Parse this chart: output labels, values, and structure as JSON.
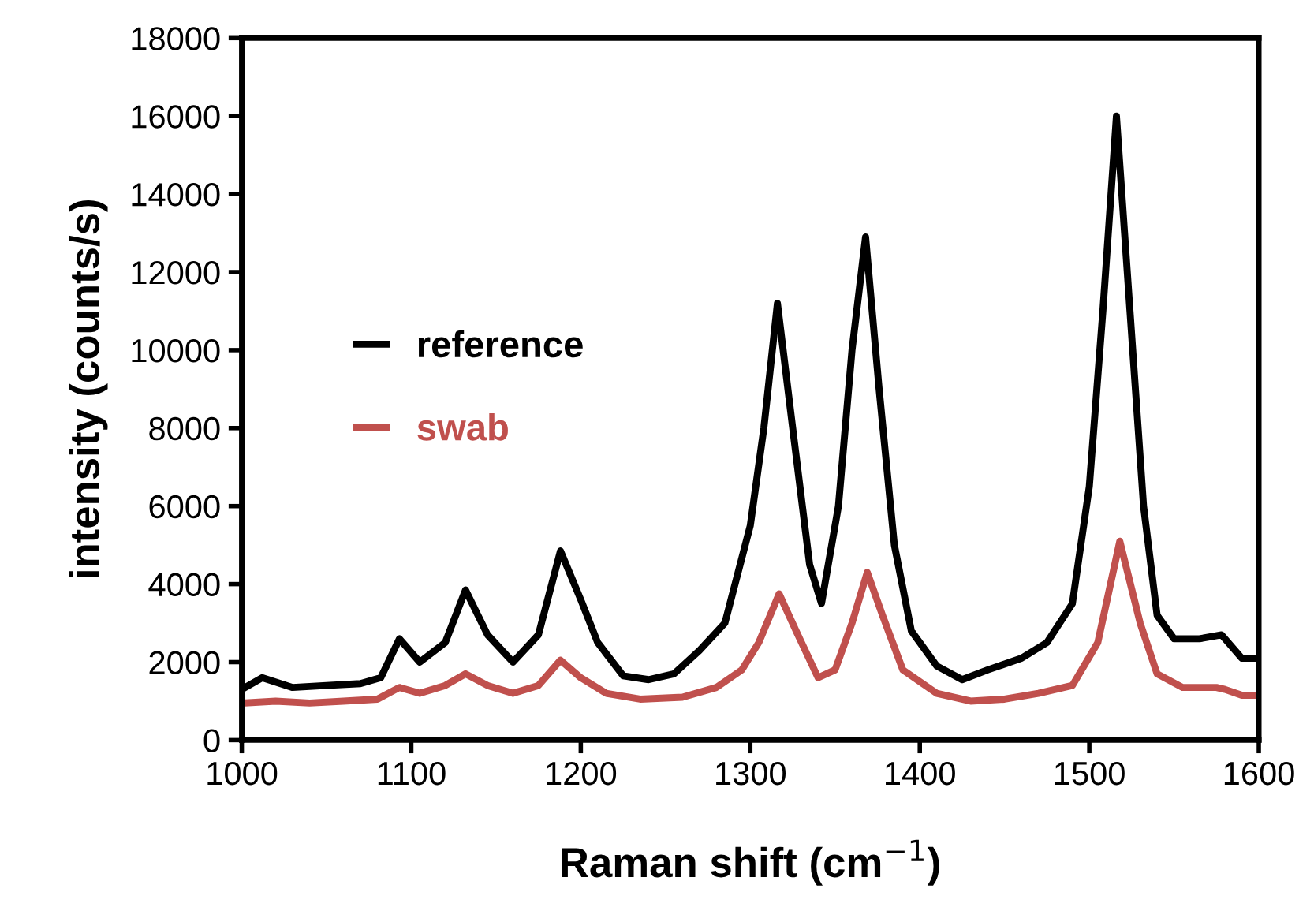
{
  "chart_data": {
    "type": "line",
    "xlabel": "Raman shift (cm$^{−1}$)",
    "ylabel": "intensity (counts/s)",
    "xlim": [
      1000,
      1600
    ],
    "xticks": [
      1000,
      1100,
      1200,
      1300,
      1400,
      1500,
      1600
    ],
    "ylim": [
      0,
      18000
    ],
    "yticks": [
      0,
      2000,
      4000,
      6000,
      8000,
      10000,
      12000,
      14000,
      16000,
      18000
    ],
    "grid": false,
    "legend": "left",
    "marker": "none",
    "line_style": "solid",
    "series": [
      {
        "name": "reference",
        "color": "#000000",
        "x": [
          1000,
          1012,
          1030,
          1050,
          1070,
          1082,
          1093,
          1105,
          1120,
          1132,
          1145,
          1160,
          1175,
          1188,
          1200,
          1210,
          1225,
          1240,
          1255,
          1270,
          1285,
          1300,
          1308,
          1316,
          1325,
          1335,
          1342,
          1352,
          1360,
          1368,
          1376,
          1385,
          1395,
          1410,
          1425,
          1440,
          1460,
          1475,
          1490,
          1500,
          1508,
          1516,
          1524,
          1532,
          1540,
          1550,
          1565,
          1578,
          1590,
          1600
        ],
        "values": [
          1300,
          1600,
          1350,
          1400,
          1450,
          1600,
          2600,
          2000,
          2500,
          3850,
          2700,
          2000,
          2700,
          4850,
          3600,
          2500,
          1650,
          1550,
          1700,
          2300,
          3000,
          5500,
          8000,
          11200,
          8000,
          4500,
          3500,
          6000,
          10000,
          12900,
          9000,
          5000,
          2800,
          1900,
          1550,
          1800,
          2100,
          2500,
          3500,
          6500,
          11000,
          16000,
          11000,
          6000,
          3200,
          2600,
          2600,
          2700,
          2100,
          2100
        ]
      },
      {
        "name": "swab",
        "color": "#c0504d",
        "x": [
          1000,
          1020,
          1040,
          1060,
          1080,
          1093,
          1105,
          1120,
          1132,
          1145,
          1160,
          1175,
          1188,
          1200,
          1215,
          1235,
          1260,
          1280,
          1295,
          1305,
          1317,
          1327,
          1340,
          1350,
          1360,
          1369,
          1378,
          1390,
          1410,
          1430,
          1450,
          1470,
          1490,
          1505,
          1518,
          1530,
          1540,
          1555,
          1575,
          1580,
          1590,
          1600
        ],
        "values": [
          950,
          1000,
          950,
          1000,
          1050,
          1350,
          1200,
          1400,
          1700,
          1400,
          1200,
          1400,
          2050,
          1600,
          1200,
          1050,
          1100,
          1350,
          1800,
          2500,
          3750,
          2800,
          1600,
          1800,
          3000,
          4300,
          3200,
          1800,
          1200,
          1000,
          1050,
          1200,
          1400,
          2500,
          5100,
          3000,
          1700,
          1350,
          1350,
          1300,
          1150,
          1150
        ]
      }
    ]
  }
}
